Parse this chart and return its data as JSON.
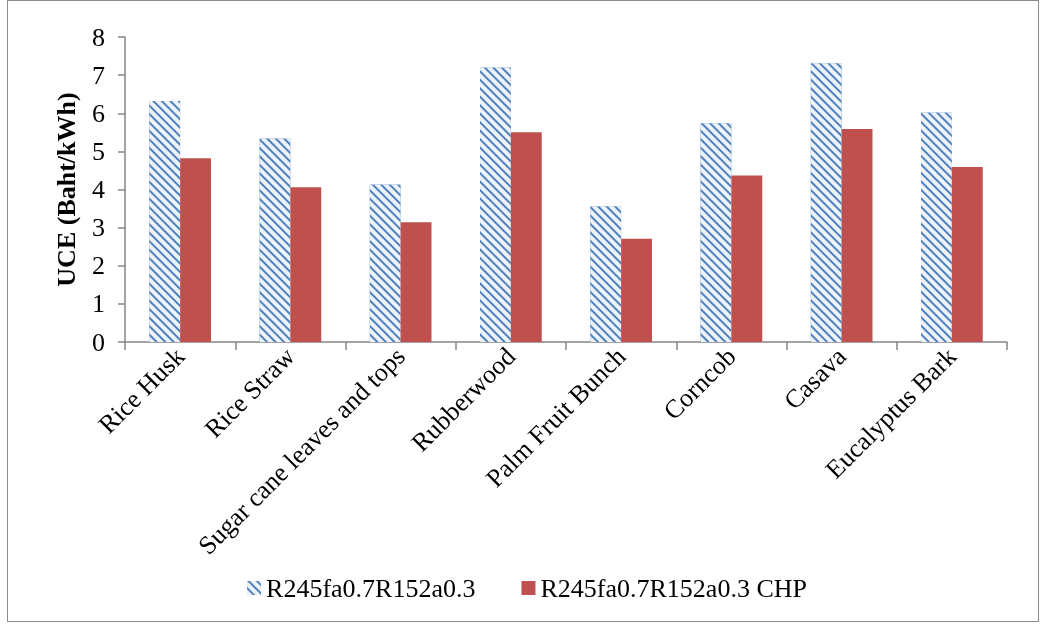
{
  "chart_data": {
    "type": "bar",
    "ylabel": "UCE (Baht/kWh)",
    "categories": [
      "Rice Husk",
      "Rice Straw",
      "Sugar cane leaves and tops",
      "Rubberwood",
      "Palm Fruit Bunch",
      "Corncob",
      "Casava",
      "Eucalyptus Bark"
    ],
    "series": [
      {
        "name": "R245fa0.7R152a0.3",
        "color": "#4f81bd",
        "values": [
          6.32,
          5.34,
          4.13,
          7.2,
          3.56,
          5.74,
          7.31,
          6.02
        ]
      },
      {
        "name": "R245fa0.7R152a0.3 CHP",
        "color": "#c0504d",
        "values": [
          4.82,
          4.06,
          3.14,
          5.5,
          2.71,
          4.37,
          5.59,
          4.59
        ]
      }
    ],
    "ylim": [
      0,
      8
    ],
    "yticks": [
      0,
      1,
      2,
      3,
      4,
      5,
      6,
      7,
      8
    ],
    "grid": false,
    "legend": "bottom"
  }
}
